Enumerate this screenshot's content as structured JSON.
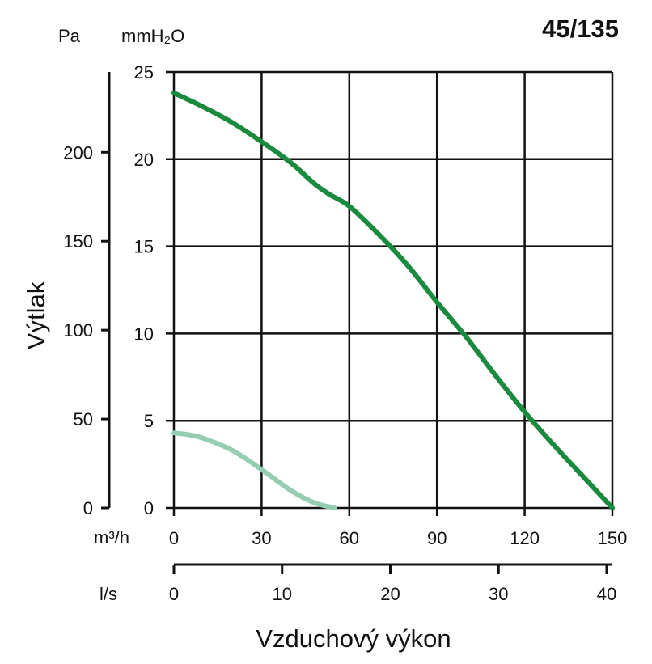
{
  "chart_data": {
    "type": "line",
    "title": "45/135",
    "xlabel": "Vzduchový výkon",
    "ylabel": "Výtlak",
    "x_axis_primary": {
      "unit": "m³/h",
      "range": [
        0,
        150
      ],
      "ticks": [
        "0",
        "30",
        "60",
        "90",
        "120",
        "150"
      ]
    },
    "x_axis_secondary": {
      "unit": "l/s",
      "range": [
        0,
        40
      ],
      "ticks": [
        "0",
        "10",
        "20",
        "30",
        "40"
      ]
    },
    "y_axis_primary": {
      "unit": "mmH₂O",
      "range": [
        0,
        25
      ],
      "ticks": [
        "0",
        "5",
        "10",
        "15",
        "20",
        "25"
      ]
    },
    "y_axis_secondary": {
      "unit": "Pa",
      "range": [
        0,
        245
      ],
      "ticks": [
        "0",
        "50",
        "100",
        "150",
        "200"
      ]
    },
    "grid": true,
    "series": [
      {
        "color": "#1a8a3f",
        "x": [
          0,
          10,
          20,
          30,
          40,
          48,
          53,
          60,
          70,
          80,
          90,
          100,
          110,
          120,
          130,
          140,
          150
        ],
        "y": [
          23.8,
          23.0,
          22.1,
          21.0,
          19.8,
          18.6,
          18.0,
          17.3,
          15.7,
          13.9,
          11.8,
          9.8,
          7.6,
          5.5,
          3.6,
          1.8,
          0
        ]
      },
      {
        "color": "#95cdb3",
        "x": [
          0,
          5,
          10,
          20,
          30,
          40,
          48,
          55
        ],
        "y": [
          4.3,
          4.2,
          4.0,
          3.3,
          2.2,
          1.0,
          0.3,
          0
        ]
      }
    ]
  }
}
